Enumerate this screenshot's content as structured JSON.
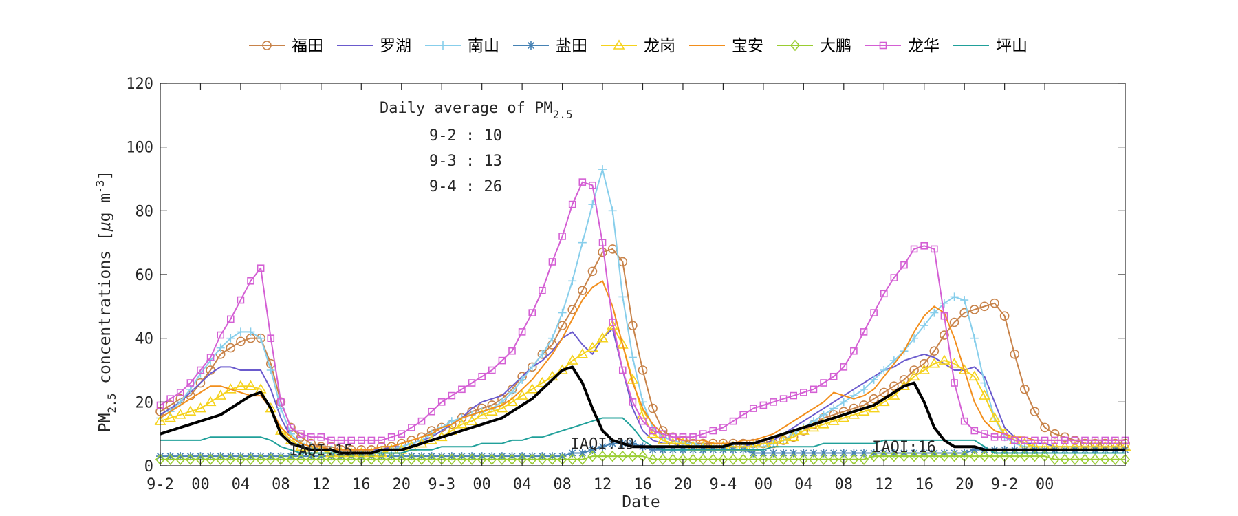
{
  "chart_data": {
    "type": "line",
    "xlabel": "Date",
    "ylabel": "PM",
    "ylabel_sub": "2.5",
    "ylabel_rest": " concentrations [",
    "ylabel_mu": "μ",
    "ylabel_unit": "g m",
    "ylabel_sup": "-3",
    "ylabel_end": "]",
    "ylim": [
      0,
      120
    ],
    "yticks": [
      0,
      20,
      40,
      60,
      80,
      100,
      120
    ],
    "xlim": [
      0,
      96
    ],
    "xticks": [
      {
        "x": 0,
        "label": "9-2"
      },
      {
        "x": 4,
        "label": "00"
      },
      {
        "x": 8,
        "label": "04"
      },
      {
        "x": 12,
        "label": "08"
      },
      {
        "x": 16,
        "label": "12"
      },
      {
        "x": 20,
        "label": "16"
      },
      {
        "x": 24,
        "label": "20"
      },
      {
        "x": 28,
        "label": "9-3"
      },
      {
        "x": 32,
        "label": "00"
      },
      {
        "x": 36,
        "label": "04"
      },
      {
        "x": 40,
        "label": "08"
      },
      {
        "x": 44,
        "label": "12"
      },
      {
        "x": 48,
        "label": "16"
      },
      {
        "x": 52,
        "label": "20"
      },
      {
        "x": 56,
        "label": "9-4"
      },
      {
        "x": 60,
        "label": "00"
      },
      {
        "x": 64,
        "label": "04"
      },
      {
        "x": 68,
        "label": "08"
      },
      {
        "x": 72,
        "label": "12"
      },
      {
        "x": 76,
        "label": "16"
      },
      {
        "x": 80,
        "label": "20"
      },
      {
        "x": 84,
        "label": "9-2"
      },
      {
        "x": 88,
        "label": "00"
      }
    ],
    "annotation": {
      "title": "Daily average of PM",
      "title_sub": "2.5",
      "lines": [
        "9-2 : 10",
        "9-3 : 13",
        "9-4 : 26"
      ]
    },
    "iaqi_labels": [
      {
        "x": 16,
        "y": 5,
        "text": "IAQI:15"
      },
      {
        "x": 44,
        "y": 7,
        "text": "IAQI:19"
      },
      {
        "x": 74,
        "y": 6,
        "text": "IAQI:16"
      }
    ],
    "legend_position": "top-center",
    "series": [
      {
        "name": "福田",
        "color": "#c8834a",
        "marker": "circle",
        "values": [
          17,
          19,
          21,
          22,
          26,
          30,
          35,
          37,
          39,
          40,
          40,
          32,
          20,
          12,
          9,
          7,
          6,
          6,
          5,
          5,
          5,
          5,
          6,
          6,
          7,
          8,
          9,
          11,
          12,
          13,
          15,
          17,
          18,
          19,
          21,
          24,
          28,
          31,
          35,
          38,
          44,
          49,
          55,
          61,
          67,
          68,
          64,
          44,
          30,
          18,
          11,
          9,
          8,
          7,
          7,
          7,
          7,
          7,
          7,
          7,
          7,
          7,
          8,
          9,
          11,
          13,
          15,
          16,
          17,
          18,
          19,
          21,
          23,
          25,
          27,
          30,
          32,
          36,
          41,
          45,
          48,
          49,
          50,
          51,
          47,
          35,
          24,
          17,
          12,
          10,
          9,
          8,
          7,
          7,
          7,
          7,
          7
        ]
      },
      {
        "name": "罗湖",
        "color": "#6a5acd",
        "marker": "none",
        "values": [
          16,
          18,
          20,
          23,
          26,
          29,
          31,
          31,
          30,
          30,
          30,
          24,
          15,
          9,
          7,
          6,
          5,
          5,
          5,
          5,
          5,
          5,
          5,
          6,
          6,
          7,
          8,
          9,
          11,
          13,
          15,
          18,
          20,
          21,
          22,
          25,
          28,
          31,
          33,
          36,
          40,
          42,
          38,
          35,
          40,
          43,
          30,
          18,
          11,
          8,
          7,
          7,
          6,
          6,
          6,
          6,
          6,
          6,
          6,
          7,
          7,
          8,
          10,
          12,
          14,
          16,
          18,
          20,
          22,
          24,
          26,
          28,
          30,
          31,
          33,
          34,
          35,
          34,
          32,
          30,
          30,
          31,
          28,
          20,
          12,
          9,
          7,
          7,
          7,
          6,
          6,
          6,
          6,
          6,
          6,
          6,
          6
        ]
      },
      {
        "name": "南山",
        "color": "#87ceeb",
        "marker": "plus",
        "values": [
          15,
          17,
          20,
          24,
          29,
          33,
          37,
          40,
          42,
          42,
          40,
          30,
          18,
          10,
          7,
          6,
          5,
          5,
          4,
          4,
          4,
          4,
          5,
          5,
          6,
          7,
          8,
          10,
          12,
          14,
          15,
          16,
          17,
          18,
          20,
          23,
          27,
          31,
          35,
          40,
          48,
          58,
          70,
          82,
          93,
          80,
          53,
          34,
          20,
          12,
          9,
          8,
          7,
          7,
          6,
          6,
          6,
          6,
          6,
          6,
          6,
          7,
          8,
          10,
          12,
          14,
          16,
          18,
          20,
          22,
          24,
          27,
          30,
          33,
          36,
          40,
          44,
          48,
          51,
          53,
          52,
          40,
          26,
          15,
          9,
          7,
          6,
          6,
          5,
          5,
          5,
          5,
          5,
          5,
          5,
          5,
          5
        ]
      },
      {
        "name": "盐田",
        "color": "#4682b4",
        "marker": "star",
        "values": [
          3,
          3,
          3,
          3,
          3,
          3,
          3,
          3,
          3,
          3,
          3,
          3,
          3,
          3,
          3,
          3,
          3,
          3,
          3,
          3,
          3,
          3,
          3,
          3,
          3,
          3,
          3,
          3,
          3,
          3,
          3,
          3,
          3,
          3,
          3,
          3,
          3,
          3,
          3,
          3,
          3,
          4,
          4,
          5,
          6,
          7,
          7,
          7,
          6,
          5,
          5,
          5,
          5,
          5,
          5,
          5,
          5,
          5,
          5,
          4,
          4,
          4,
          4,
          4,
          4,
          4,
          4,
          4,
          4,
          4,
          4,
          4,
          4,
          4,
          4,
          4,
          4,
          4,
          4,
          4,
          4,
          5,
          5,
          5,
          5,
          5,
          5,
          5,
          5,
          5,
          5,
          5,
          5,
          5,
          5,
          5,
          5
        ]
      },
      {
        "name": "龙岗",
        "color": "#f5d21c",
        "marker": "triangle",
        "values": [
          14,
          15,
          16,
          17,
          18,
          20,
          22,
          24,
          25,
          25,
          24,
          18,
          11,
          8,
          6,
          5,
          5,
          4,
          4,
          4,
          4,
          4,
          4,
          5,
          5,
          6,
          7,
          8,
          9,
          11,
          13,
          14,
          16,
          17,
          18,
          20,
          22,
          24,
          26,
          28,
          30,
          33,
          35,
          37,
          40,
          44,
          38,
          27,
          16,
          10,
          8,
          7,
          7,
          6,
          6,
          6,
          6,
          6,
          6,
          6,
          7,
          7,
          8,
          9,
          11,
          12,
          13,
          14,
          15,
          16,
          17,
          18,
          20,
          22,
          25,
          28,
          30,
          32,
          33,
          32,
          30,
          28,
          22,
          15,
          10,
          8,
          7,
          6,
          6,
          6,
          6,
          6,
          6,
          6,
          6,
          6,
          6
        ]
      },
      {
        "name": "宝安",
        "color": "#f28e1c",
        "marker": "none",
        "values": [
          15,
          17,
          19,
          21,
          23,
          25,
          25,
          24,
          23,
          22,
          22,
          18,
          12,
          9,
          7,
          6,
          6,
          5,
          5,
          5,
          5,
          5,
          6,
          6,
          7,
          8,
          9,
          10,
          12,
          13,
          15,
          16,
          17,
          18,
          19,
          21,
          24,
          27,
          31,
          35,
          40,
          46,
          52,
          56,
          58,
          50,
          38,
          26,
          18,
          13,
          10,
          9,
          8,
          8,
          8,
          7,
          7,
          7,
          8,
          8,
          9,
          10,
          12,
          14,
          16,
          18,
          20,
          23,
          22,
          21,
          22,
          24,
          28,
          32,
          36,
          42,
          47,
          50,
          48,
          40,
          30,
          20,
          14,
          11,
          10,
          9,
          9,
          8,
          8,
          8,
          8,
          8,
          8,
          8,
          8,
          8,
          8
        ]
      },
      {
        "name": "大鹏",
        "color": "#9acd32",
        "marker": "diamond",
        "values": [
          2,
          2,
          2,
          2,
          2,
          2,
          2,
          2,
          2,
          2,
          2,
          2,
          2,
          2,
          2,
          2,
          2,
          2,
          2,
          2,
          2,
          2,
          2,
          2,
          2,
          2,
          2,
          2,
          2,
          2,
          2,
          2,
          2,
          2,
          2,
          2,
          2,
          2,
          2,
          2,
          2,
          2,
          2,
          3,
          3,
          3,
          3,
          3,
          3,
          2,
          2,
          2,
          2,
          2,
          2,
          2,
          2,
          2,
          2,
          2,
          2,
          2,
          2,
          2,
          2,
          2,
          2,
          2,
          2,
          2,
          2,
          3,
          3,
          3,
          3,
          3,
          3,
          3,
          3,
          3,
          3,
          3,
          3,
          3,
          3,
          3,
          3,
          3,
          3,
          2,
          2,
          2,
          2,
          2,
          2,
          2,
          2
        ]
      },
      {
        "name": "龙华",
        "color": "#d45fd4",
        "marker": "square",
        "values": [
          19,
          21,
          23,
          26,
          30,
          34,
          41,
          46,
          52,
          58,
          62,
          40,
          20,
          12,
          10,
          9,
          9,
          8,
          8,
          8,
          8,
          8,
          8,
          9,
          10,
          12,
          14,
          17,
          20,
          22,
          24,
          26,
          28,
          30,
          33,
          36,
          42,
          48,
          55,
          64,
          72,
          82,
          89,
          88,
          70,
          45,
          30,
          20,
          14,
          11,
          10,
          9,
          9,
          9,
          10,
          11,
          12,
          14,
          16,
          18,
          19,
          20,
          21,
          22,
          23,
          24,
          26,
          28,
          31,
          36,
          42,
          48,
          54,
          59,
          63,
          68,
          69,
          68,
          47,
          26,
          14,
          11,
          10,
          9,
          9,
          8,
          8,
          8,
          8,
          8,
          8,
          8,
          8,
          8,
          8,
          8,
          8
        ]
      },
      {
        "name": "坪山",
        "color": "#20a09a",
        "marker": "none",
        "values": [
          8,
          8,
          8,
          8,
          8,
          9,
          9,
          9,
          9,
          9,
          9,
          8,
          6,
          5,
          4,
          4,
          4,
          4,
          4,
          4,
          4,
          4,
          4,
          4,
          4,
          5,
          5,
          5,
          6,
          6,
          6,
          6,
          7,
          7,
          7,
          8,
          8,
          9,
          9,
          10,
          11,
          12,
          13,
          14,
          15,
          15,
          15,
          12,
          8,
          6,
          5,
          5,
          5,
          5,
          5,
          5,
          5,
          5,
          5,
          5,
          5,
          6,
          6,
          6,
          6,
          6,
          7,
          7,
          7,
          7,
          7,
          7,
          8,
          8,
          8,
          8,
          8,
          8,
          8,
          8,
          8,
          8,
          6,
          4,
          4,
          4,
          4,
          4,
          4,
          4,
          4,
          4,
          4,
          4,
          4,
          4,
          4
        ]
      },
      {
        "name": "",
        "color": "#000000",
        "marker": "none",
        "values": [
          10,
          11,
          12,
          13,
          14,
          15,
          16,
          18,
          20,
          22,
          23,
          18,
          10,
          7,
          6,
          5,
          5,
          5,
          4,
          4,
          4,
          4,
          5,
          5,
          5,
          6,
          7,
          8,
          9,
          10,
          11,
          12,
          13,
          14,
          15,
          17,
          19,
          21,
          24,
          27,
          30,
          31,
          26,
          18,
          11,
          8,
          7,
          6,
          6,
          6,
          6,
          6,
          6,
          6,
          6,
          6,
          6,
          7,
          7,
          7,
          8,
          9,
          10,
          11,
          12,
          13,
          14,
          15,
          16,
          17,
          18,
          19,
          21,
          23,
          25,
          26,
          20,
          12,
          8,
          6,
          6,
          6,
          5,
          5,
          5,
          5,
          5,
          5,
          5,
          5,
          5,
          5,
          5,
          5,
          5,
          5,
          5
        ]
      }
    ]
  }
}
